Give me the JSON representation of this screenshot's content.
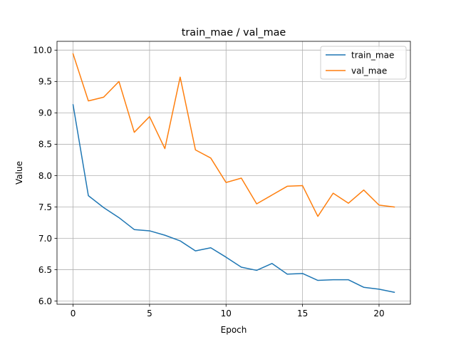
{
  "chart_data": {
    "type": "line",
    "title": "train_mae / val_mae",
    "xlabel": "Epoch",
    "ylabel": "Value",
    "xlim": [
      -1.05,
      22.05
    ],
    "ylim": [
      5.95,
      10.14
    ],
    "xticks": [
      0,
      5,
      10,
      15,
      20
    ],
    "yticks": [
      6.0,
      6.5,
      7.0,
      7.5,
      8.0,
      8.5,
      9.0,
      9.5,
      10.0
    ],
    "grid": true,
    "legend_position": "top-right",
    "x": [
      0,
      1,
      2,
      3,
      4,
      5,
      6,
      7,
      8,
      9,
      10,
      11,
      12,
      13,
      14,
      15,
      16,
      17,
      18,
      19,
      20,
      21
    ],
    "series": [
      {
        "name": "train_mae",
        "color": "#1f77b4",
        "values": [
          9.13,
          7.68,
          7.49,
          7.33,
          7.14,
          7.12,
          7.05,
          6.96,
          6.8,
          6.85,
          6.7,
          6.54,
          6.49,
          6.6,
          6.43,
          6.44,
          6.33,
          6.34,
          6.34,
          6.22,
          6.19,
          6.14
        ]
      },
      {
        "name": "val_mae",
        "color": "#ff7f0e",
        "values": [
          9.94,
          9.19,
          9.25,
          9.5,
          8.69,
          8.94,
          8.43,
          9.57,
          8.41,
          8.28,
          7.89,
          7.96,
          7.55,
          7.69,
          7.83,
          7.84,
          7.35,
          7.72,
          7.56,
          7.77,
          7.53,
          7.5
        ]
      }
    ]
  }
}
